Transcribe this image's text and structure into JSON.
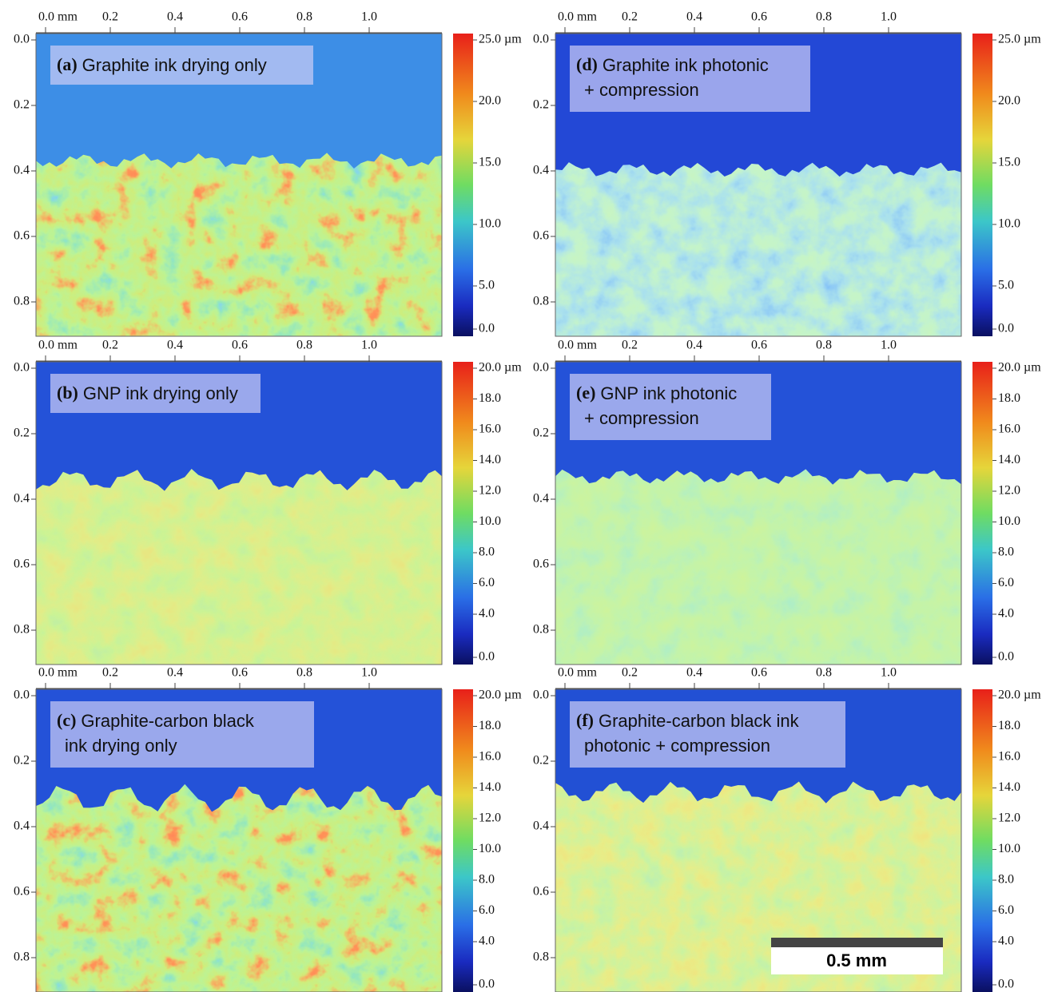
{
  "panels": [
    {
      "label": "(a)",
      "caption": [
        "Graphite ink drying only"
      ],
      "x_ticks": [
        "0.0 mm",
        "0.2",
        "0.4",
        "0.6",
        "0.8",
        "1.0"
      ],
      "y_ticks": [
        "0.0",
        "0.2",
        "0.4",
        "0.6",
        "0.8"
      ],
      "colorbar_ticks": [
        "25.0 µm",
        "20.0",
        "15.0",
        "10.0",
        "5.0",
        "0.0"
      ]
    },
    {
      "label": "(b)",
      "caption": [
        "GNP ink drying only"
      ],
      "x_ticks": [
        "0.0 mm",
        "0.2",
        "0.4",
        "0.6",
        "0.8",
        "1.0"
      ],
      "y_ticks": [
        "0.0",
        "0.2",
        "0.4",
        "0.6",
        "0.8"
      ],
      "colorbar_ticks": [
        "20.0 µm",
        "18.0",
        "16.0",
        "14.0",
        "12.0",
        "10.0",
        "8.0",
        "6.0",
        "4.0",
        "0.0"
      ]
    },
    {
      "label": "(c)",
      "caption": [
        "Graphite-carbon black",
        "ink drying only"
      ],
      "x_ticks": [
        "0.0 mm",
        "0.2",
        "0.4",
        "0.6",
        "0.8",
        "1.0"
      ],
      "y_ticks": [
        "0.0",
        "0.2",
        "0.4",
        "0.6",
        "0.8"
      ],
      "colorbar_ticks": [
        "20.0 µm",
        "18.0",
        "16.0",
        "14.0",
        "12.0",
        "10.0",
        "8.0",
        "6.0",
        "4.0",
        "0.0"
      ]
    },
    {
      "label": "(d)",
      "caption": [
        "Graphite ink photonic",
        "+ compression"
      ],
      "x_ticks": [
        "0.0 mm",
        "0.2",
        "0.4",
        "0.6",
        "0.8",
        "1.0"
      ],
      "y_ticks": [
        "0.0",
        "0.2",
        "0.4",
        "0.6",
        "0.8"
      ],
      "colorbar_ticks": [
        "25.0 µm",
        "20.0",
        "15.0",
        "10.0",
        "5.0",
        "0.0"
      ]
    },
    {
      "label": "(e)",
      "caption": [
        "GNP ink photonic",
        "+ compression"
      ],
      "x_ticks": [
        "0.0 mm",
        "0.2",
        "0.4",
        "0.6",
        "0.8",
        "1.0"
      ],
      "y_ticks": [
        "0.0",
        "0.2",
        "0.4",
        "0.6",
        "0.8"
      ],
      "colorbar_ticks": [
        "20.0 µm",
        "18.0",
        "16.0",
        "14.0",
        "12.0",
        "10.0",
        "8.0",
        "6.0",
        "4.0",
        "0.0"
      ]
    },
    {
      "label": "(f)",
      "caption": [
        "Graphite-carbon black ink",
        "photonic + compression"
      ],
      "x_ticks": [
        "0.0 mm",
        "0.2",
        "0.4",
        "0.6",
        "0.8",
        "1.0"
      ],
      "y_ticks": [
        "0.0",
        "0.2",
        "0.4",
        "0.6",
        "0.8"
      ],
      "colorbar_ticks": [
        "20.0 µm",
        "18.0",
        "16.0",
        "14.0",
        "12.0",
        "10.0",
        "8.0",
        "6.0",
        "4.0",
        "0.0"
      ]
    }
  ],
  "scale_bar": "0.5 mm"
}
